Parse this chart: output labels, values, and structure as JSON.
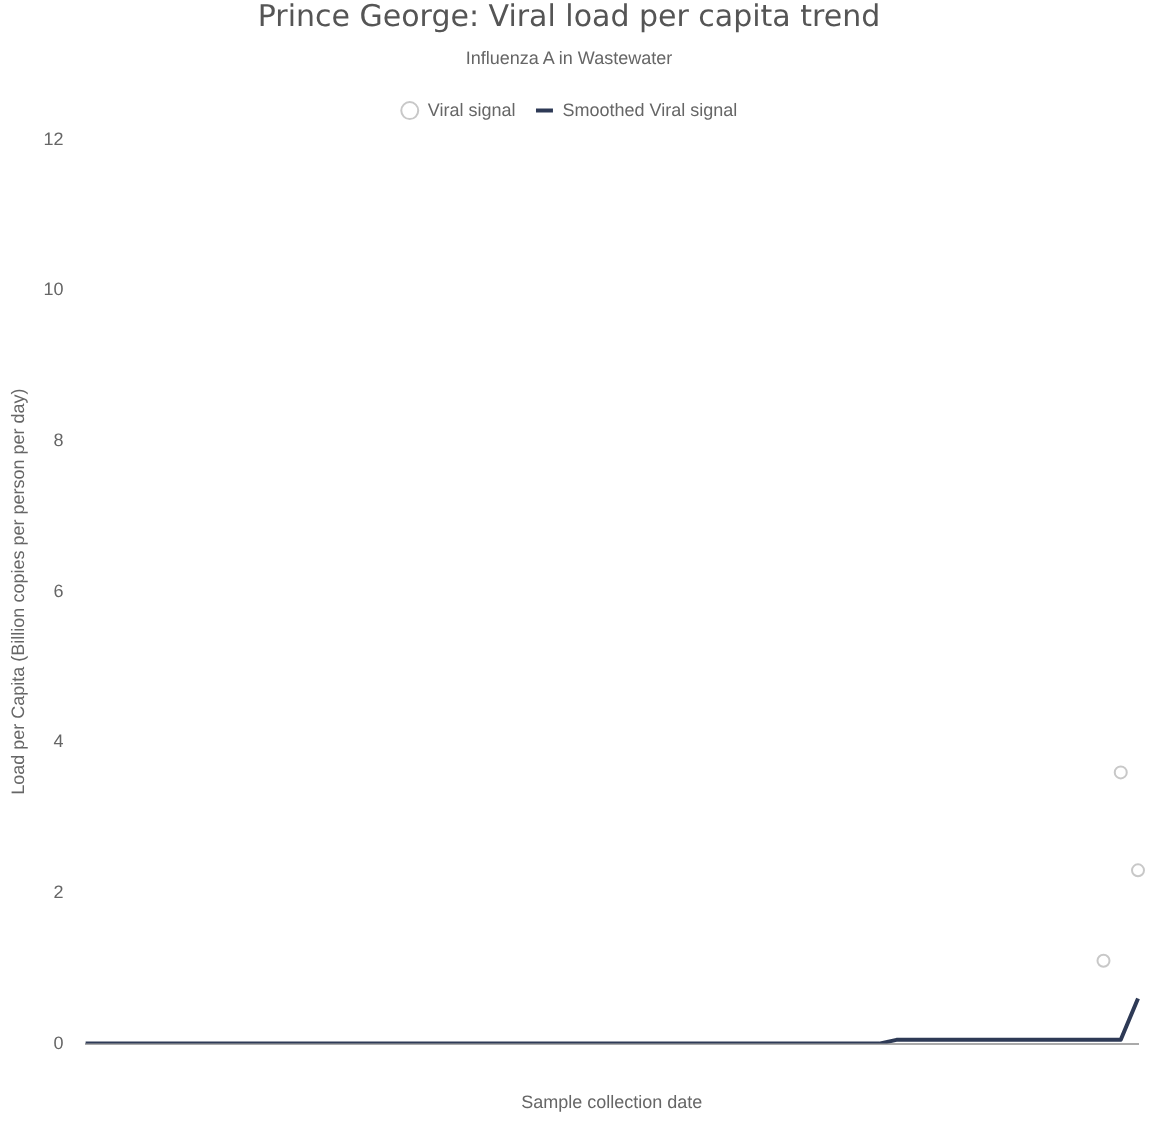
{
  "chart_data": {
    "type": "line",
    "title": "Prince George: Viral load per capita trend",
    "subtitle": "Influenza A in Wastewater",
    "xlabel": "Sample collection date",
    "ylabel": "Load per Capita (Billion copies per person per day)",
    "categories": [
      null,
      null,
      null,
      null,
      null,
      null,
      null,
      null,
      null,
      null,
      null,
      null,
      null,
      null,
      null,
      null,
      null,
      null,
      null,
      null,
      null,
      null,
      null,
      null,
      null,
      null,
      null,
      null,
      null,
      null,
      null,
      null,
      null,
      null,
      null,
      null,
      null,
      null,
      null,
      null,
      null,
      null,
      null,
      null,
      null,
      null,
      null,
      null,
      null,
      null,
      null,
      null,
      null,
      null,
      null,
      null,
      null,
      null,
      null,
      null,
      null,
      null
    ],
    "series": [
      {
        "name": "Viral signal",
        "type": "scatter",
        "marker": "circle",
        "color": "#c8c8c8",
        "values": [
          null,
          null,
          null,
          null,
          null,
          null,
          null,
          null,
          null,
          null,
          null,
          null,
          null,
          null,
          null,
          null,
          null,
          null,
          null,
          null,
          null,
          null,
          null,
          null,
          null,
          null,
          null,
          null,
          null,
          null,
          null,
          null,
          null,
          null,
          null,
          null,
          null,
          null,
          null,
          null,
          null,
          null,
          null,
          null,
          null,
          null,
          null,
          null,
          null,
          null,
          null,
          null,
          null,
          null,
          null,
          null,
          null,
          null,
          null,
          1.1,
          3.6,
          2.3
        ]
      },
      {
        "name": "Smoothed Viral signal",
        "color": "#2e3a56",
        "values": [
          0,
          0,
          0,
          0,
          0,
          0,
          0,
          0,
          0,
          0,
          0,
          0,
          0,
          0,
          0,
          0,
          0,
          0,
          0,
          0,
          0,
          0,
          0,
          0,
          0,
          0,
          0,
          0,
          0,
          0,
          0,
          0,
          0,
          0,
          0,
          0,
          0,
          0,
          0,
          0,
          0,
          0,
          0,
          0,
          0,
          0,
          0,
          0.05,
          0.05,
          0.05,
          0.05,
          0.05,
          0.05,
          0.05,
          0.05,
          0.05,
          0.05,
          0.05,
          0.05,
          0.05,
          0.05,
          0.6
        ]
      }
    ],
    "ylim": [
      0,
      12
    ],
    "yticks": [
      0,
      2,
      4,
      6,
      8,
      10,
      12
    ],
    "grid": false,
    "legend": "top"
  }
}
